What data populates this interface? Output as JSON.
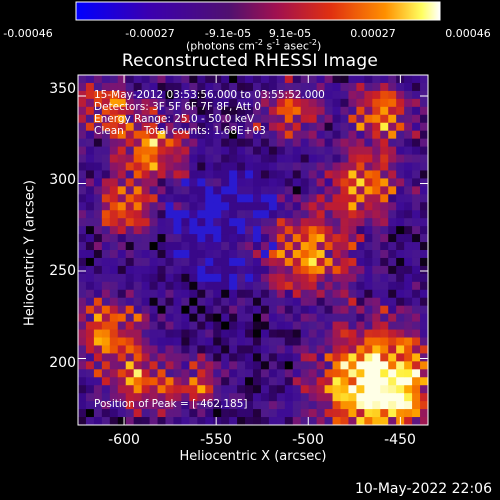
{
  "colorbar": {
    "tick_labels": [
      "-0.00046",
      "-0.00027",
      "-9.1e-05",
      "9.1e-05",
      "0.00027",
      "0.00046"
    ],
    "units_main": "(photons cm",
    "units_sup1": "-2",
    "units_mid": " s",
    "units_sup2": "-1",
    "units_end": " asec",
    "units_sup3": "-2",
    "units_close": ")",
    "range": [
      -0.00046,
      0.00046
    ],
    "colors": [
      "#0000ff",
      "#3b008f",
      "#5c1a9a",
      "#a01060",
      "#e0301a",
      "#ff9000",
      "#ffff40",
      "#ffffff"
    ]
  },
  "chart_data": {
    "type": "heatmap",
    "title": "Reconstructed RHESSI Image",
    "xlabel": "Heliocentric X (arcsec)",
    "ylabel": "Heliocentric Y (arcsec)",
    "xlim": [
      -625,
      -435
    ],
    "ylim": [
      162,
      362
    ],
    "x_ticks": [
      -600,
      -550,
      -500,
      -450
    ],
    "y_ticks": [
      200,
      250,
      300,
      350
    ],
    "peak": [
      -462,
      185
    ],
    "source_intensity_peak_approx": 0.00046,
    "annotations": {
      "time_range": "15-May-2012 03:53:56.000 to 03:55:52.000",
      "detectors": "Detectors: 3F 5F 6F 7F 8F, Att 0",
      "energy_range": "Energy Range: 25.0 - 50.0 keV",
      "method": "Clean",
      "total_counts": "Total counts: 1.68E+03",
      "peak_position": "Position of Peak = [-462,185]"
    }
  },
  "footer": {
    "timestamp": "10-May-2022 22:06"
  }
}
